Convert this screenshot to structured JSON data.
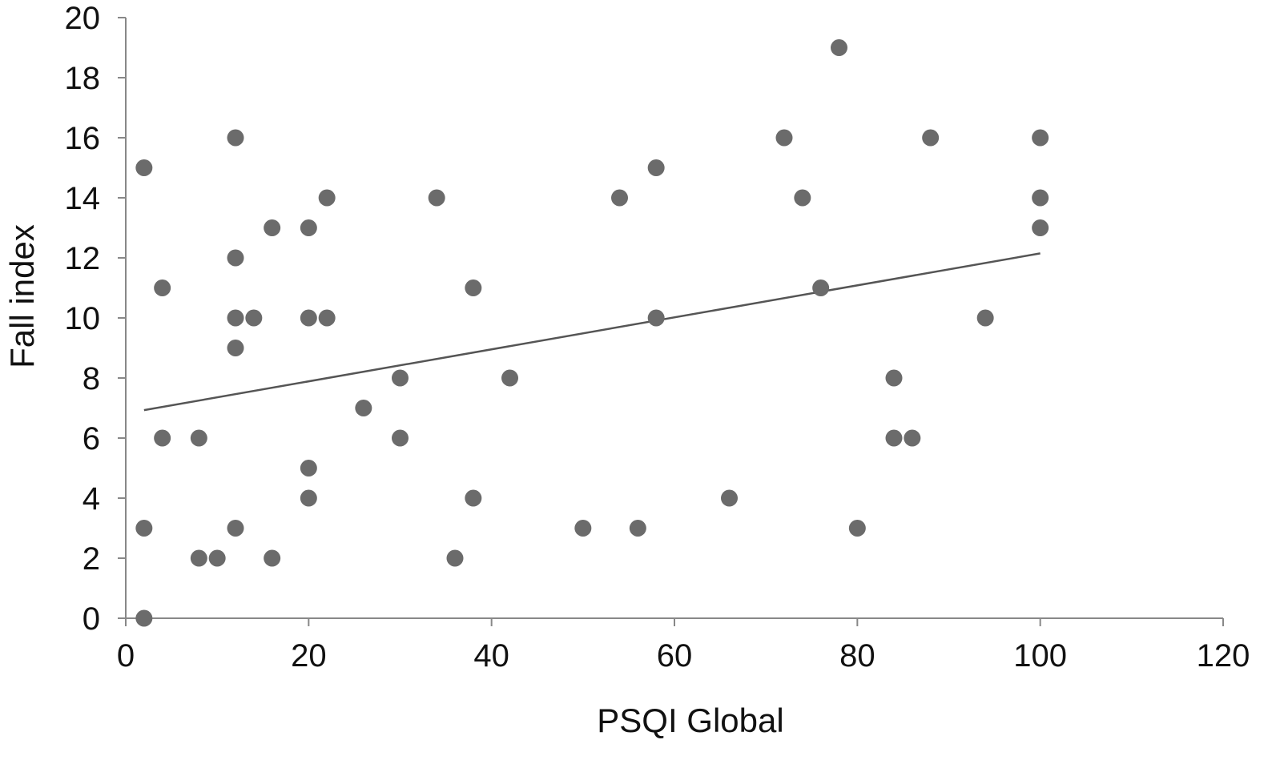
{
  "chart_data": {
    "type": "scatter",
    "title": "",
    "xlabel": "PSQI Global",
    "ylabel": "Fall index",
    "xlim": [
      0,
      120
    ],
    "ylim": [
      0,
      20
    ],
    "x_ticks": [
      0,
      20,
      40,
      60,
      80,
      100,
      120
    ],
    "y_ticks": [
      0,
      2,
      4,
      6,
      8,
      10,
      12,
      14,
      16,
      18,
      20
    ],
    "grid": false,
    "legend": "none",
    "point_color": "#6b6b6b",
    "line_color": "#555555",
    "axis_color": "#888888",
    "trendline": {
      "type": "linear",
      "x": [
        2,
        100
      ],
      "y": [
        6.93,
        12.15
      ]
    },
    "series": [
      {
        "points": [
          {
            "x": 2,
            "y": 15
          },
          {
            "x": 2,
            "y": 3
          },
          {
            "x": 2,
            "y": 0
          },
          {
            "x": 4,
            "y": 11
          },
          {
            "x": 4,
            "y": 6
          },
          {
            "x": 8,
            "y": 6
          },
          {
            "x": 8,
            "y": 2
          },
          {
            "x": 10,
            "y": 2
          },
          {
            "x": 12,
            "y": 16
          },
          {
            "x": 12,
            "y": 12
          },
          {
            "x": 12,
            "y": 10
          },
          {
            "x": 12,
            "y": 9
          },
          {
            "x": 12,
            "y": 3
          },
          {
            "x": 14,
            "y": 10
          },
          {
            "x": 16,
            "y": 13
          },
          {
            "x": 16,
            "y": 2
          },
          {
            "x": 20,
            "y": 13
          },
          {
            "x": 20,
            "y": 10
          },
          {
            "x": 20,
            "y": 5
          },
          {
            "x": 20,
            "y": 4
          },
          {
            "x": 22,
            "y": 14
          },
          {
            "x": 22,
            "y": 10
          },
          {
            "x": 26,
            "y": 7
          },
          {
            "x": 30,
            "y": 8
          },
          {
            "x": 30,
            "y": 6
          },
          {
            "x": 34,
            "y": 14
          },
          {
            "x": 36,
            "y": 2
          },
          {
            "x": 38,
            "y": 11
          },
          {
            "x": 38,
            "y": 4
          },
          {
            "x": 42,
            "y": 8
          },
          {
            "x": 50,
            "y": 3
          },
          {
            "x": 54,
            "y": 14
          },
          {
            "x": 56,
            "y": 3
          },
          {
            "x": 58,
            "y": 15
          },
          {
            "x": 58,
            "y": 10
          },
          {
            "x": 66,
            "y": 4
          },
          {
            "x": 72,
            "y": 16
          },
          {
            "x": 74,
            "y": 14
          },
          {
            "x": 76,
            "y": 11
          },
          {
            "x": 78,
            "y": 19
          },
          {
            "x": 80,
            "y": 3
          },
          {
            "x": 84,
            "y": 8
          },
          {
            "x": 84,
            "y": 6
          },
          {
            "x": 86,
            "y": 6
          },
          {
            "x": 88,
            "y": 16
          },
          {
            "x": 94,
            "y": 10
          },
          {
            "x": 100,
            "y": 16
          },
          {
            "x": 100,
            "y": 14
          },
          {
            "x": 100,
            "y": 13
          }
        ]
      }
    ]
  }
}
